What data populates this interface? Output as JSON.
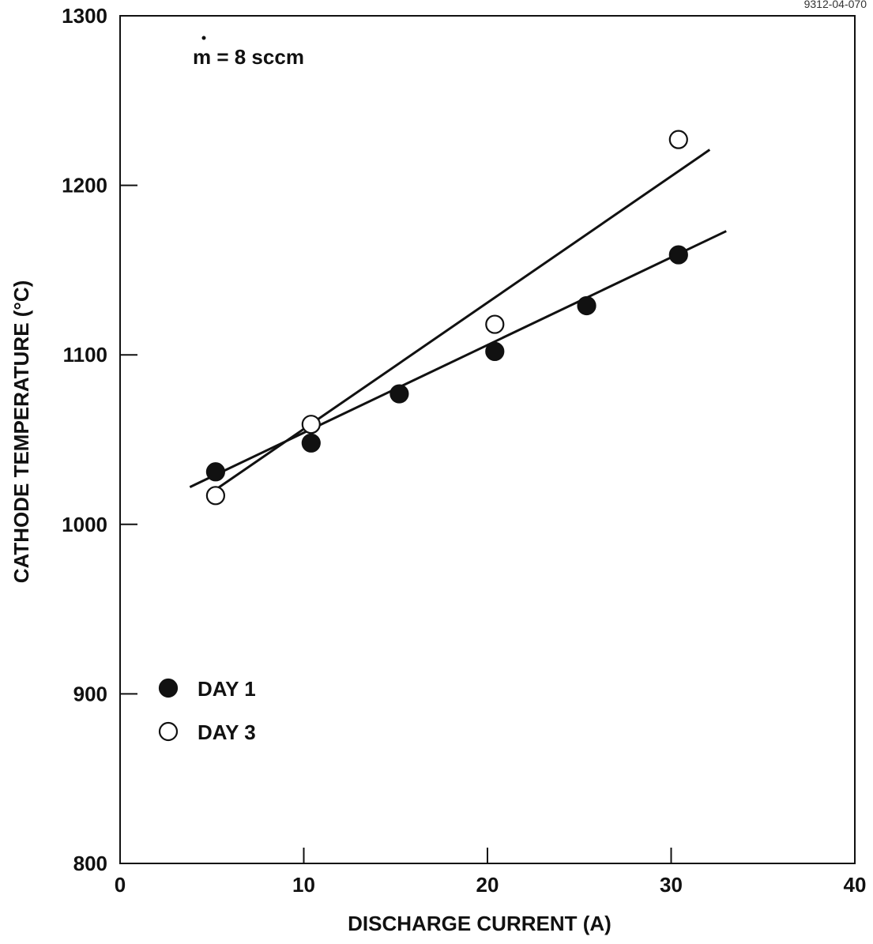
{
  "figure_id": "9312-04-070",
  "chart_data": {
    "type": "scatter",
    "title": "",
    "xlabel": "DISCHARGE CURRENT (A)",
    "ylabel": "CATHODE TEMPERATURE (°C)",
    "xlim": [
      0,
      40
    ],
    "ylim": [
      800,
      1300
    ],
    "x_ticks": [
      0,
      10,
      20,
      30,
      40
    ],
    "y_ticks": [
      800,
      900,
      1000,
      1100,
      1200,
      1300
    ],
    "grid": false,
    "legend_position": "lower-left",
    "annotation": "m = 8 sccm",
    "annotation_dot_over_first_char": true,
    "series": [
      {
        "name": "DAY 1",
        "marker": "filled-circle",
        "color": "#111111",
        "points": [
          {
            "x": 5.2,
            "y": 1031
          },
          {
            "x": 10.4,
            "y": 1048
          },
          {
            "x": 15.2,
            "y": 1077
          },
          {
            "x": 20.4,
            "y": 1102
          },
          {
            "x": 25.4,
            "y": 1129
          },
          {
            "x": 30.4,
            "y": 1159
          }
        ],
        "fit_line": {
          "x": [
            3.8,
            33.0
          ],
          "y": [
            1022,
            1173
          ]
        }
      },
      {
        "name": "DAY 3",
        "marker": "open-circle",
        "color": "#111111",
        "points": [
          {
            "x": 5.2,
            "y": 1017
          },
          {
            "x": 10.4,
            "y": 1059
          },
          {
            "x": 20.4,
            "y": 1118
          },
          {
            "x": 30.4,
            "y": 1227
          }
        ],
        "fit_line": {
          "x": [
            5.0,
            32.1
          ],
          "y": [
            1019,
            1221
          ]
        }
      }
    ]
  }
}
